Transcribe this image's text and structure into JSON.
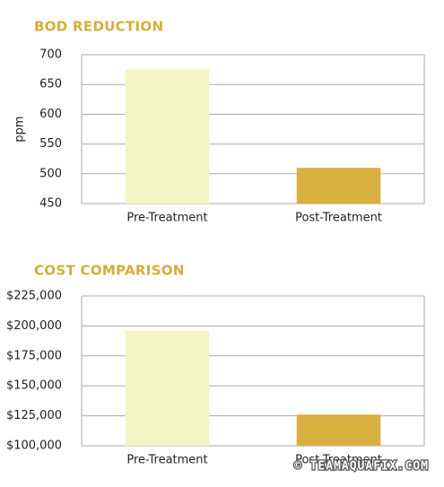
{
  "chart_data": [
    {
      "type": "bar",
      "title": "BOD REDUCTION",
      "y_label": "ppm",
      "categories": [
        "Pre-Treatment",
        "Post-Treatment"
      ],
      "values": [
        675,
        510
      ],
      "colors": [
        "#f4f5c4",
        "#d8b040"
      ],
      "ylim": [
        450,
        700
      ],
      "yticks": [
        450,
        500,
        550,
        600,
        650,
        700
      ],
      "grid": true
    },
    {
      "type": "bar",
      "title": "COST COMPARISON",
      "categories": [
        "Pre-Treatment",
        "Post-Treatment"
      ],
      "values": [
        196000,
        126000
      ],
      "colors": [
        "#f4f5c4",
        "#d8b040"
      ],
      "ylim": [
        100000,
        225000
      ],
      "yticks": [
        {
          "value": 100000,
          "label": "$100,000"
        },
        {
          "value": 125000,
          "label": "$125,000"
        },
        {
          "value": 150000,
          "label": "$150,000"
        },
        {
          "value": 175000,
          "label": "$175,000"
        },
        {
          "value": 200000,
          "label": "$200,000"
        },
        {
          "value": 225000,
          "label": "$225,000"
        }
      ],
      "grid": true
    }
  ],
  "watermark": "© TEAMAQUAFIX.COM"
}
